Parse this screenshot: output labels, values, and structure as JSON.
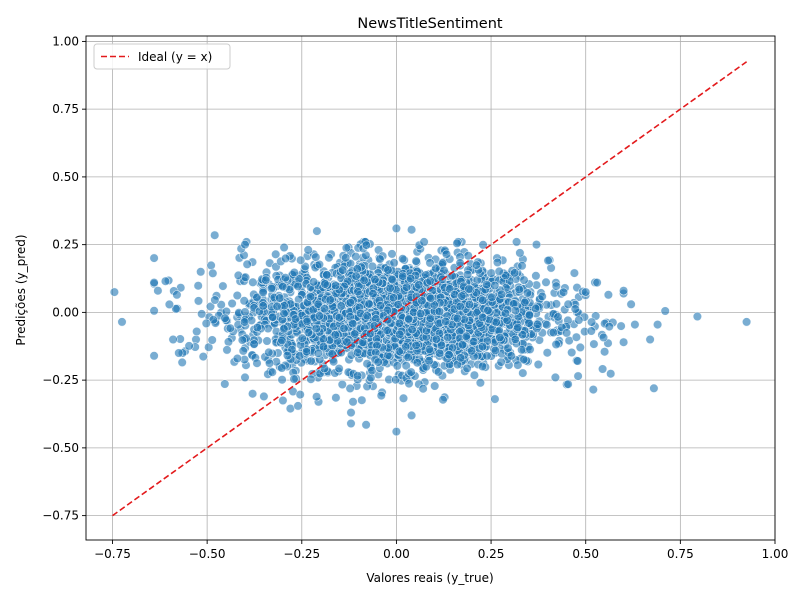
{
  "chart_data": {
    "type": "scatter",
    "title": "NewsTitleSentiment",
    "xlabel": "Valores reais (y_true)",
    "ylabel": "Predições (y_pred)",
    "xlim": [
      -0.82,
      1.0
    ],
    "ylim": [
      -0.84,
      1.02
    ],
    "xticks": [
      -0.75,
      -0.5,
      -0.25,
      0.0,
      0.25,
      0.5,
      0.75,
      1.0
    ],
    "xtick_labels": [
      "−0.75",
      "−0.50",
      "−0.25",
      "0.00",
      "0.25",
      "0.50",
      "0.75",
      "1.00"
    ],
    "yticks": [
      -0.75,
      -0.5,
      -0.25,
      0.0,
      0.25,
      0.5,
      0.75,
      1.0
    ],
    "ytick_labels": [
      "−0.75",
      "−0.50",
      "−0.25",
      "0.00",
      "0.25",
      "0.50",
      "0.75",
      "1.00"
    ],
    "grid": true,
    "legend": {
      "position": "top-left",
      "entries": [
        "Ideal (y = x)"
      ]
    },
    "series": [
      {
        "name": "Ideal (y = x)",
        "kind": "line",
        "style": "dashed",
        "color": "#e31a1c",
        "x": [
          -0.75,
          0.925
        ],
        "y": [
          -0.75,
          0.925
        ]
      },
      {
        "kind": "scatter",
        "color": "#1f77b4",
        "alpha": 0.6,
        "distribution": {
          "x_mean": 0.0,
          "x_std": 0.2,
          "y_mean": -0.01,
          "y_std": 0.1,
          "count": 3000
        },
        "points": [
          [
            -0.745,
            0.075
          ],
          [
            -0.725,
            -0.035
          ],
          [
            -0.64,
            0.11
          ],
          [
            -0.63,
            0.08
          ],
          [
            -0.61,
            0.115
          ],
          [
            -0.58,
            0.065
          ],
          [
            -0.59,
            -0.1
          ],
          [
            -0.565,
            -0.15
          ],
          [
            -0.575,
            -0.15
          ],
          [
            -0.48,
            0.285
          ],
          [
            -0.41,
            0.235
          ],
          [
            -0.4,
            0.25
          ],
          [
            -0.42,
            -0.17
          ],
          [
            -0.4,
            -0.24
          ],
          [
            -0.38,
            -0.3
          ],
          [
            -0.35,
            -0.31
          ],
          [
            -0.3,
            -0.325
          ],
          [
            -0.28,
            -0.355
          ],
          [
            -0.26,
            -0.345
          ],
          [
            -0.21,
            0.3
          ],
          [
            -0.16,
            -0.315
          ],
          [
            -0.12,
            -0.37
          ],
          [
            -0.12,
            -0.41
          ],
          [
            -0.08,
            -0.415
          ],
          [
            0.0,
            -0.44
          ],
          [
            0.04,
            -0.38
          ],
          [
            0.0,
            0.31
          ],
          [
            0.04,
            0.305
          ],
          [
            0.16,
            0.255
          ],
          [
            0.26,
            -0.32
          ],
          [
            0.37,
            0.25
          ],
          [
            0.42,
            -0.24
          ],
          [
            0.48,
            -0.235
          ],
          [
            0.52,
            -0.285
          ],
          [
            0.53,
            0.11
          ],
          [
            0.56,
            0.065
          ],
          [
            0.6,
            0.08
          ],
          [
            0.62,
            0.03
          ],
          [
            0.63,
            -0.045
          ],
          [
            0.67,
            -0.1
          ],
          [
            0.68,
            -0.28
          ],
          [
            0.69,
            -0.045
          ],
          [
            0.71,
            0.005
          ],
          [
            0.795,
            -0.015
          ],
          [
            0.925,
            -0.035
          ],
          [
            0.55,
            -0.145
          ],
          [
            0.5,
            0.075
          ],
          [
            0.47,
            0.145
          ]
        ]
      }
    ]
  }
}
